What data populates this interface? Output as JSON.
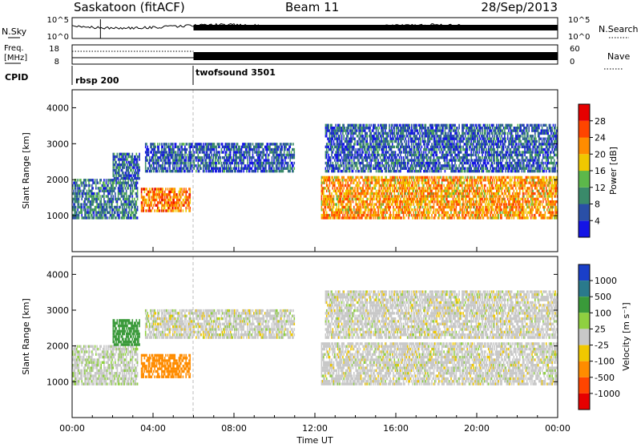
{
  "header": {
    "station": "Saskatoon (fitACF)",
    "beam": "Beam 11",
    "date": "28/Sep/2013"
  },
  "noise_panel": {
    "left_label": "N.Sky",
    "right_label": "N.Search",
    "left_ticks": [
      "10^5",
      "10^0"
    ],
    "right_ticks": [
      "10^5",
      "10^0"
    ]
  },
  "freq_panel": {
    "left_label_1": "Freq.",
    "left_label_2": "[MHz]",
    "right_label": "Nave",
    "left_ticks": [
      "18",
      "8"
    ],
    "right_ticks": [
      "60",
      "0"
    ]
  },
  "cpid_panel": {
    "label": "CPID",
    "segments": [
      {
        "name": "rbsp 200",
        "start_hour": 0,
        "end_hour": 6
      },
      {
        "name": "twofsound 3501",
        "start_hour": 6,
        "end_hour": 24
      }
    ]
  },
  "x_axis": {
    "label": "Time UT",
    "tick_labels": [
      "00:00",
      "04:00",
      "08:00",
      "12:00",
      "16:00",
      "20:00",
      "00:00"
    ]
  },
  "power_panel": {
    "ylabel": "Slant Range [km]",
    "y_ticks": [
      "1000",
      "2000",
      "3000",
      "4000"
    ],
    "colorbar_label": "Power [dB]",
    "colorbar_ticks": [
      "4",
      "8",
      "12",
      "16",
      "20",
      "24",
      "28"
    ],
    "colors": [
      "#1414e6",
      "#2a4fa6",
      "#3a8a6a",
      "#5cb84a",
      "#f0c800",
      "#ff8c00",
      "#ff4500",
      "#e60000"
    ]
  },
  "velocity_panel": {
    "ylabel": "Slant Range [km]",
    "y_ticks": [
      "1000",
      "2000",
      "3000",
      "4000"
    ],
    "colorbar_label": "Velocity [m s⁻¹]",
    "colorbar_ticks": [
      "1000",
      "500",
      "100",
      "25",
      "-25",
      "-100",
      "-500",
      "-1000"
    ],
    "colors": [
      "#1a3fc8",
      "#2a7a8c",
      "#3a9a3a",
      "#8fd040",
      "#c8c8c8",
      "#f0c800",
      "#ff8c00",
      "#ff4500",
      "#e60000"
    ]
  },
  "chart_data": {
    "type": "heatmap",
    "title": "Saskatoon (fitACF) Beam 11 28/Sep/2013",
    "xlabel": "Time UT",
    "ylabel": "Slant Range [km]",
    "xlim_hours": [
      0,
      24
    ],
    "ylim_km": [
      0,
      4500
    ],
    "panels": [
      "Power [dB]",
      "Velocity [m s⁻¹]"
    ],
    "power_range_db": [
      0,
      30
    ],
    "velocity_range_ms": [
      -1000,
      1000
    ],
    "echo_regions": [
      {
        "start_hour": 0.0,
        "end_hour": 3.2,
        "range_km": [
          900,
          2000
        ],
        "power_db": 8,
        "velocity_ms": 10
      },
      {
        "start_hour": 2.0,
        "end_hour": 3.3,
        "range_km": [
          2000,
          2700
        ],
        "power_db": 6,
        "velocity_ms": 150
      },
      {
        "start_hour": 3.4,
        "end_hour": 5.8,
        "range_km": [
          1100,
          1750
        ],
        "power_db": 22,
        "velocity_ms": -300
      },
      {
        "start_hour": 3.6,
        "end_hour": 11.0,
        "range_km": [
          2200,
          3000
        ],
        "power_db": 6,
        "velocity_ms": 0
      },
      {
        "start_hour": 12.3,
        "end_hour": 24.0,
        "range_km": [
          900,
          2100
        ],
        "power_db": 20,
        "velocity_ms": 0
      },
      {
        "start_hour": 12.5,
        "end_hour": 24.0,
        "range_km": [
          2200,
          3500
        ],
        "power_db": 6,
        "velocity_ms": 0
      }
    ]
  }
}
